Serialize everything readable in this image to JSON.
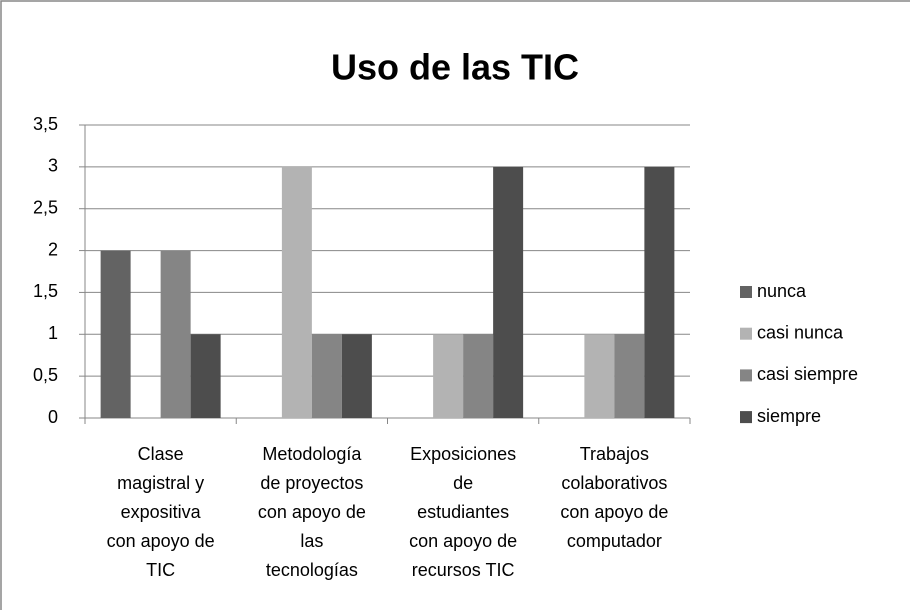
{
  "chart_data": {
    "type": "bar",
    "title": "Uso de las TIC",
    "categories": [
      "Clase\nmagistral y\nexpositiva\ncon apoyo de\nTIC",
      "Metodología\nde proyectos\ncon apoyo de\nlas\ntecnologías",
      "Exposiciones\nde\nestudiantes\ncon apoyo de\nrecursos TIC",
      "Trabajos\ncolaborativos\ncon apoyo de\ncomputador"
    ],
    "series": [
      {
        "name": "nunca",
        "color": "#636363",
        "values": [
          2,
          0,
          0,
          0
        ]
      },
      {
        "name": "casi nunca",
        "color": "#b3b3b3",
        "values": [
          0,
          3,
          1,
          1
        ]
      },
      {
        "name": "casi siempre",
        "color": "#858585",
        "values": [
          2,
          1,
          1,
          1
        ]
      },
      {
        "name": "siempre",
        "color": "#4d4d4d",
        "values": [
          1,
          1,
          3,
          3
        ]
      }
    ],
    "ylim": [
      0,
      3.5
    ],
    "yticks": [
      0,
      {
        "value": 0.5,
        "label": "0,5"
      },
      1,
      {
        "value": 1.5,
        "label": "1,5"
      },
      2,
      {
        "value": 2.5,
        "label": "2,5"
      },
      3,
      {
        "value": 3.5,
        "label": "3,5"
      }
    ],
    "grid": true,
    "legend": "right"
  }
}
